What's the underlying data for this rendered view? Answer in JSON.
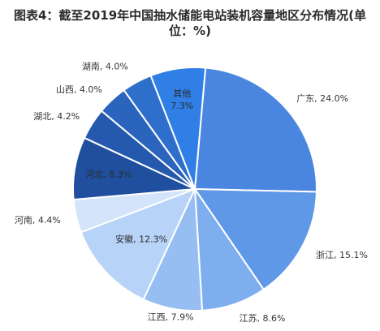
{
  "figure": {
    "title_prefix": "图表4：",
    "title": "截至2019年中国抽水储能电站装机容量地区分布情况(单位：%)"
  },
  "chart_data": {
    "type": "pie",
    "title": "图表4：截至2019年中国抽水储能电站装机容量地区分布情况(单位：%)",
    "unit": "%",
    "slices": [
      {
        "label": "广东",
        "value": 24.0,
        "color": "#4a86e0"
      },
      {
        "label": "浙江",
        "value": 15.1,
        "color": "#5f98e6"
      },
      {
        "label": "江苏",
        "value": 8.6,
        "color": "#7eaeee"
      },
      {
        "label": "江西",
        "value": 7.9,
        "color": "#96bef2"
      },
      {
        "label": "安徽",
        "value": 12.3,
        "color": "#b7d3f7"
      },
      {
        "label": "河南",
        "value": 4.4,
        "color": "#d3e4fb"
      },
      {
        "label": "河北",
        "value": 8.3,
        "color": "#1f4f9e"
      },
      {
        "label": "湖北",
        "value": 4.2,
        "color": "#2459ad"
      },
      {
        "label": "山西",
        "value": 4.0,
        "color": "#2a64bd"
      },
      {
        "label": "湖南",
        "value": 4.0,
        "color": "#2f6fcc"
      },
      {
        "label": "其他",
        "value": 7.3,
        "color": "#2f7fe6"
      }
    ]
  }
}
